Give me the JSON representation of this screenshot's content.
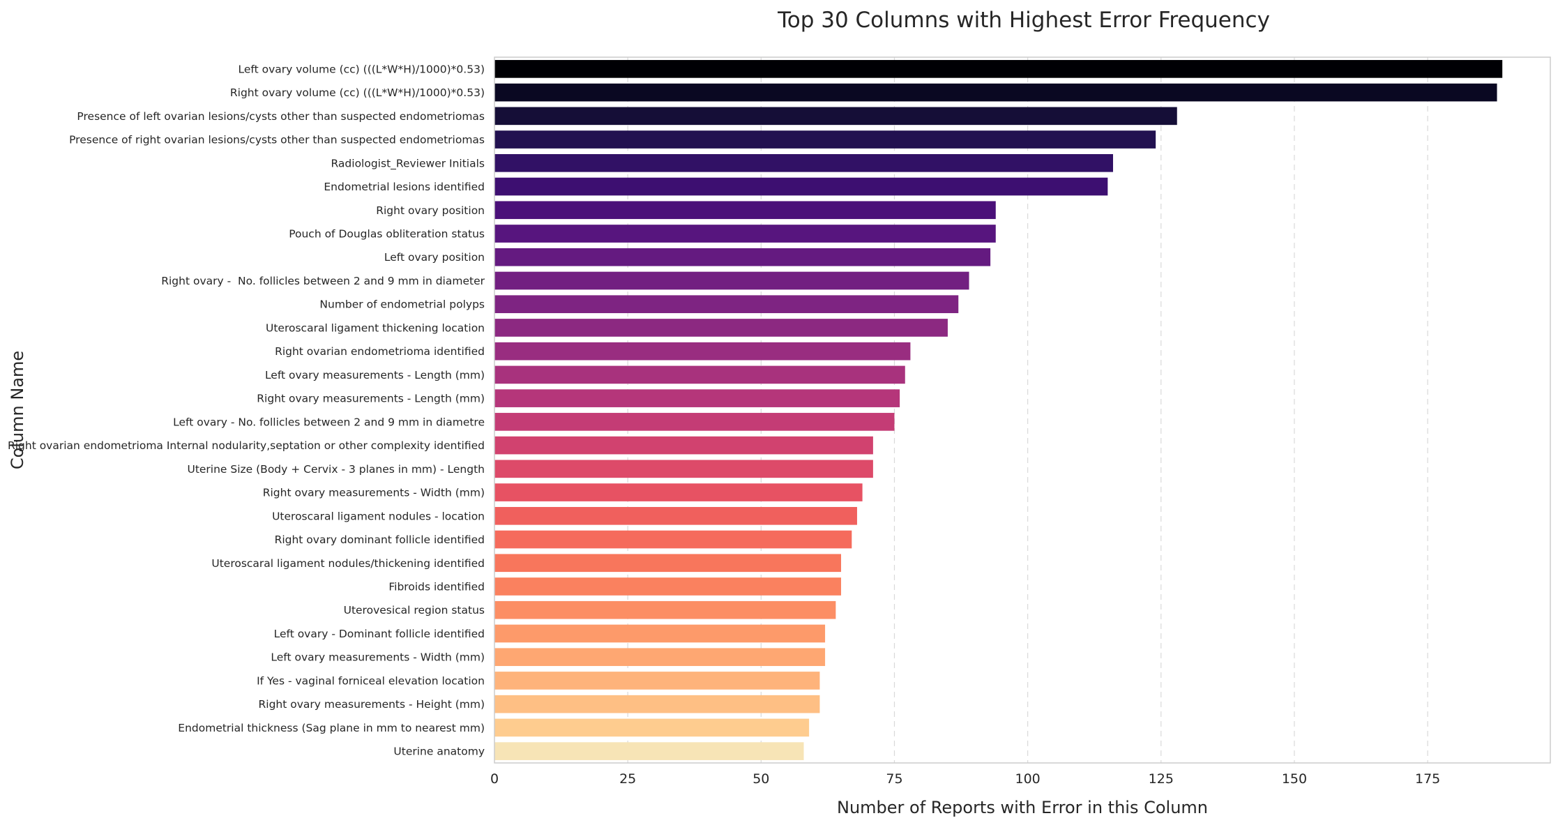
{
  "chart_data": {
    "type": "bar",
    "orientation": "horizontal",
    "title": "Top 30 Columns with Highest Error Frequency",
    "xlabel": "Number of Reports with Error in this Column",
    "ylabel": "Column Name",
    "xlim": [
      0,
      198
    ],
    "xticks": [
      0,
      25,
      50,
      75,
      100,
      125,
      150,
      175
    ],
    "grid": "x-dashed",
    "palette": "magma",
    "categories": [
      "Left ovary volume (cc) (((L*W*H)/1000)*0.53)",
      "Right ovary volume (cc) (((L*W*H)/1000)*0.53)",
      "Presence of left ovarian lesions/cysts other than suspected endometriomas",
      "Presence of right ovarian lesions/cysts other than suspected endometriomas",
      "Radiologist_Reviewer Initials",
      "Endometrial lesions identified",
      "Right ovary position",
      "Pouch of Douglas obliteration status",
      "Left ovary position",
      "Right ovary -  No. follicles between 2 and 9 mm in diameter",
      "Number of endometrial polyps",
      "Uteroscaral ligament thickening location",
      "Right ovarian endometrioma identified",
      "Left ovary measurements - Length (mm)",
      "Right ovary measurements - Length (mm)",
      "Left ovary - No. follicles between 2 and 9 mm in diametre",
      "Right ovarian endometrioma Internal nodularity,septation or other complexity identified",
      "Uterine Size (Body + Cervix - 3 planes in mm) - Length",
      "Right ovary measurements - Width (mm)",
      "Uteroscaral ligament nodules - location",
      "Right ovary dominant follicle identified",
      "Uteroscaral ligament nodules/thickening identified",
      "Fibroids identified",
      "Uterovesical region status",
      "Left ovary - Dominant follicle identified",
      "Left ovary measurements - Width (mm)",
      "If Yes - vaginal forniceal elevation location",
      "Right ovary measurements - Height (mm)",
      "Endometrial thickness (Sag plane in mm to nearest mm)",
      "Uterine anatomy"
    ],
    "values": [
      189,
      188,
      128,
      124,
      116,
      115,
      94,
      94,
      93,
      89,
      87,
      85,
      78,
      77,
      76,
      75,
      71,
      71,
      69,
      68,
      67,
      65,
      65,
      64,
      62,
      62,
      61,
      61,
      59,
      58
    ],
    "colors": [
      "#000004",
      "#0a0822",
      "#150e37",
      "#221150",
      "#311165",
      "#3d0f71",
      "#4a1079",
      "#57157e",
      "#641a80",
      "#721f81",
      "#7e2482",
      "#8c2981",
      "#992d80",
      "#a8327d",
      "#b5367a",
      "#c43c75",
      "#d1426f",
      "#dd4a69",
      "#e75263",
      "#f0605d",
      "#f56b5c",
      "#f8765c",
      "#fa815f",
      "#fc8e64",
      "#fd9a6a",
      "#fea772",
      "#feb37b",
      "#febf84",
      "#fecc8f",
      "#f7e4b6"
    ]
  }
}
